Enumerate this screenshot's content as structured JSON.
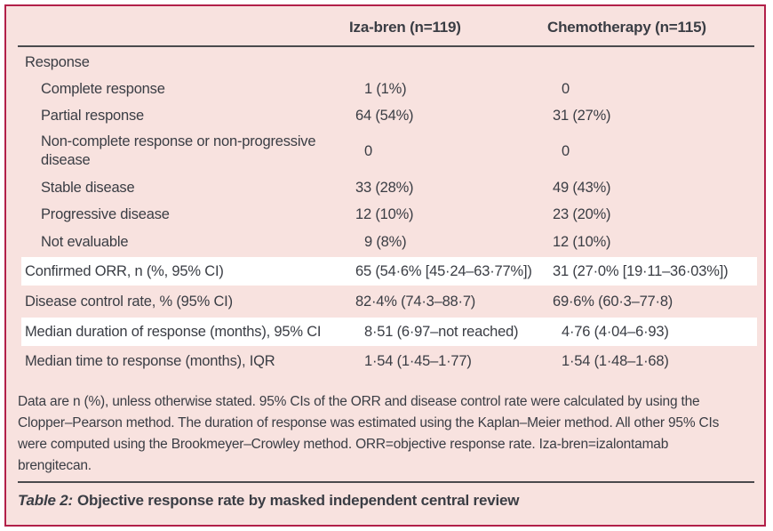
{
  "colors": {
    "border": "#b22049",
    "background": "#f8e2df",
    "highlight_row": "#ffffff",
    "text": "#3a3d44",
    "rule": "#4a4a4d"
  },
  "table": {
    "columns": {
      "iza": "Iza-bren (n=119)",
      "chemo": "Chemotherapy (n=115)"
    },
    "rows": [
      {
        "label": "Response"
      },
      {
        "label": "Complete response",
        "iza": "1 (1%)",
        "chemo": "0"
      },
      {
        "label": "Partial response",
        "iza": "64 (54%)",
        "chemo": "31 (27%)"
      },
      {
        "label": "Non-complete response or non-progressive disease",
        "iza": "0",
        "chemo": "0"
      },
      {
        "label": "Stable disease",
        "iza": "33 (28%)",
        "chemo": "49 (43%)"
      },
      {
        "label": "Progressive disease",
        "iza": "12 (10%)",
        "chemo": "23 (20%)"
      },
      {
        "label": "Not evaluable",
        "iza": "9 (8%)",
        "chemo": "12 (10%)"
      },
      {
        "label": "Confirmed ORR, n (%, 95% CI)",
        "iza": "65 (54·6% [45·24–63·77%])",
        "chemo": "31 (27·0% [19·11–36·03%])"
      },
      {
        "label": "Disease control rate, % (95% CI)",
        "iza": "82·4% (74·3–88·7)",
        "chemo": "69·6% (60·3–77·8)"
      },
      {
        "label": "Median duration of response (months), 95% CI",
        "iza": "8·51 (6·97–not reached)",
        "chemo": "4·76 (4·04–6·93)"
      },
      {
        "label": "Median time to response (months), IQR",
        "iza": "1·54 (1·45–1·77)",
        "chemo": "1·54 (1·48–1·68)"
      }
    ],
    "footnote": "Data are n (%), unless otherwise stated. 95% CIs of the ORR and disease control rate were calculated by using the Clopper–Pearson method. The duration of response was estimated using the Kaplan–Meier method. All other 95% CIs were computed using the Brookmeyer–Crowley method. ORR=objective response rate. Iza-bren=izalontamab brengitecan.",
    "caption": {
      "prefix": "Table 2:",
      "text": "Objective response rate by masked independent central review"
    }
  }
}
